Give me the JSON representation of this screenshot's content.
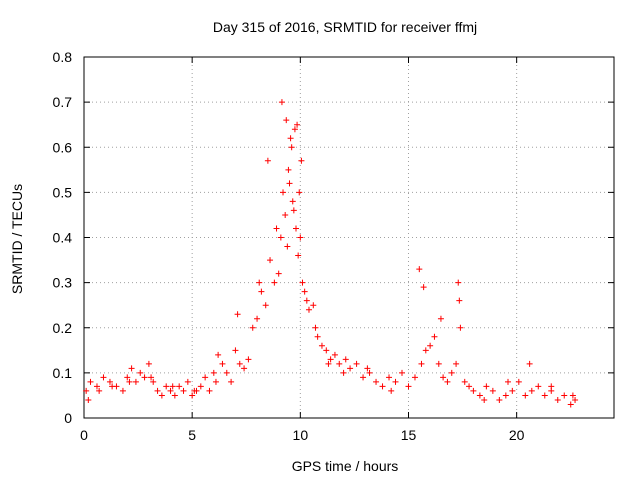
{
  "chart_data": {
    "type": "scatter",
    "title": "Day 315 of 2016, SRMTID for receiver ffmj",
    "xlabel": "GPS time / hours",
    "ylabel": "SRMTID / TECUs",
    "xlim": [
      0,
      24.5
    ],
    "ylim": [
      0,
      0.8
    ],
    "xticks": [
      0,
      5,
      10,
      15,
      20
    ],
    "yticks": [
      0,
      0.1,
      0.2,
      0.3,
      0.4,
      0.5,
      0.6,
      0.7,
      0.8
    ],
    "xtick_labels": [
      "0",
      "5",
      "10",
      "15",
      "20"
    ],
    "ytick_labels": [
      "0",
      "0.1",
      "0.2",
      "0.3",
      "0.4",
      "0.5",
      "0.6",
      "0.7",
      "0.8"
    ],
    "grid": true,
    "marker": "+",
    "colors": {
      "points": "#ff0000",
      "grid": "#a0a0a0",
      "axes": "#000000"
    },
    "series": [
      {
        "name": "SRMTID",
        "x": [
          0.1,
          0.3,
          0.6,
          0.9,
          1.2,
          1.5,
          1.8,
          2.0,
          2.2,
          2.4,
          2.6,
          2.8,
          3.0,
          3.2,
          3.4,
          3.6,
          3.8,
          4.0,
          4.2,
          4.4,
          4.6,
          4.8,
          5.0,
          5.2,
          5.4,
          5.6,
          5.8,
          6.0,
          6.2,
          6.4,
          6.6,
          6.8,
          7.0,
          7.2,
          7.4,
          7.6,
          7.8,
          8.0,
          8.2,
          8.4,
          8.6,
          8.8,
          9.0,
          9.1,
          9.2,
          9.3,
          9.4,
          9.5,
          9.6,
          9.7,
          9.8,
          9.9,
          10.0,
          10.1,
          10.2,
          10.4,
          10.6,
          10.8,
          11.0,
          11.2,
          11.4,
          11.6,
          11.8,
          12.0,
          12.3,
          12.6,
          12.9,
          13.2,
          13.5,
          13.8,
          14.1,
          14.4,
          14.7,
          15.0,
          15.3,
          15.6,
          15.8,
          16.0,
          16.2,
          16.4,
          16.6,
          16.8,
          17.0,
          17.2,
          17.4,
          17.6,
          17.8,
          18.0,
          18.3,
          18.6,
          18.9,
          19.2,
          19.5,
          19.8,
          20.1,
          20.4,
          20.7,
          21.0,
          21.3,
          21.6,
          21.9,
          22.2,
          22.5,
          22.7,
          0.2,
          0.7,
          1.3,
          2.1,
          3.1,
          4.1,
          5.1,
          6.1,
          7.1,
          8.1,
          8.5,
          8.9,
          9.15,
          9.35,
          9.45,
          9.55,
          9.65,
          9.75,
          9.85,
          9.95,
          10.05,
          10.3,
          10.7,
          11.3,
          12.1,
          13.1,
          14.2,
          15.5,
          15.7,
          16.5,
          17.3,
          17.35,
          18.5,
          19.6,
          20.6,
          21.6,
          22.6
        ],
        "y": [
          0.06,
          0.08,
          0.07,
          0.09,
          0.08,
          0.07,
          0.06,
          0.09,
          0.11,
          0.08,
          0.1,
          0.09,
          0.12,
          0.08,
          0.06,
          0.05,
          0.07,
          0.06,
          0.05,
          0.07,
          0.06,
          0.08,
          0.05,
          0.06,
          0.07,
          0.09,
          0.06,
          0.1,
          0.14,
          0.12,
          0.1,
          0.08,
          0.15,
          0.12,
          0.11,
          0.13,
          0.2,
          0.22,
          0.28,
          0.25,
          0.35,
          0.3,
          0.32,
          0.4,
          0.5,
          0.45,
          0.38,
          0.52,
          0.6,
          0.46,
          0.42,
          0.36,
          0.4,
          0.3,
          0.28,
          0.24,
          0.25,
          0.18,
          0.16,
          0.15,
          0.13,
          0.14,
          0.12,
          0.1,
          0.11,
          0.12,
          0.09,
          0.1,
          0.08,
          0.07,
          0.09,
          0.08,
          0.1,
          0.07,
          0.09,
          0.12,
          0.15,
          0.16,
          0.18,
          0.12,
          0.09,
          0.08,
          0.1,
          0.12,
          0.2,
          0.08,
          0.07,
          0.06,
          0.05,
          0.07,
          0.06,
          0.04,
          0.05,
          0.06,
          0.08,
          0.05,
          0.06,
          0.07,
          0.05,
          0.06,
          0.04,
          0.05,
          0.03,
          0.04,
          0.04,
          0.06,
          0.07,
          0.08,
          0.09,
          0.07,
          0.06,
          0.08,
          0.23,
          0.3,
          0.57,
          0.42,
          0.7,
          0.66,
          0.55,
          0.62,
          0.48,
          0.64,
          0.65,
          0.5,
          0.57,
          0.26,
          0.2,
          0.12,
          0.13,
          0.11,
          0.06,
          0.33,
          0.29,
          0.22,
          0.3,
          0.26,
          0.04,
          0.08,
          0.12,
          0.07,
          0.05
        ]
      }
    ]
  }
}
